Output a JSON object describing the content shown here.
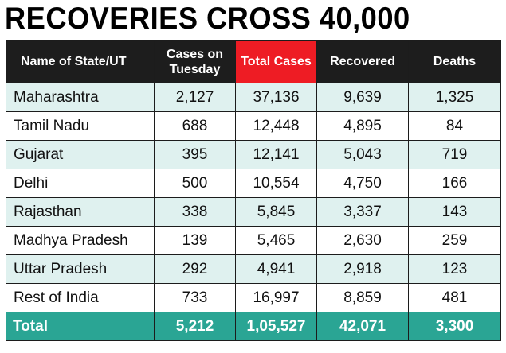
{
  "chart_data": {
    "type": "table",
    "title": "RECOVERIES CROSS 40,000",
    "columns": [
      "Name of State/UT",
      "Cases on Tuesday",
      "Total Cases",
      "Recovered",
      "Deaths"
    ],
    "highlight_column": "Total Cases",
    "rows": [
      [
        "Maharashtra",
        "2,127",
        "37,136",
        "9,639",
        "1,325"
      ],
      [
        "Tamil Nadu",
        "688",
        "12,448",
        "4,895",
        "84"
      ],
      [
        "Gujarat",
        "395",
        "12,141",
        "5,043",
        "719"
      ],
      [
        "Delhi",
        "500",
        "10,554",
        "4,750",
        "166"
      ],
      [
        "Rajasthan",
        "338",
        "5,845",
        "3,337",
        "143"
      ],
      [
        "Madhya Pradesh",
        "139",
        "5,465",
        "2,630",
        "259"
      ],
      [
        "Uttar Pradesh",
        "292",
        "4,941",
        "2,918",
        "123"
      ],
      [
        "Rest of India",
        "733",
        "16,997",
        "8,859",
        "481"
      ]
    ],
    "total": [
      "Total",
      "5,212",
      "1,05,527",
      "42,071",
      "3,300"
    ]
  },
  "colors": {
    "header_bg": "#1d1d1d",
    "highlight_header_bg": "#ee1c24",
    "tint_row_bg": "#dff1ef",
    "total_row_bg": "#2aa594"
  }
}
